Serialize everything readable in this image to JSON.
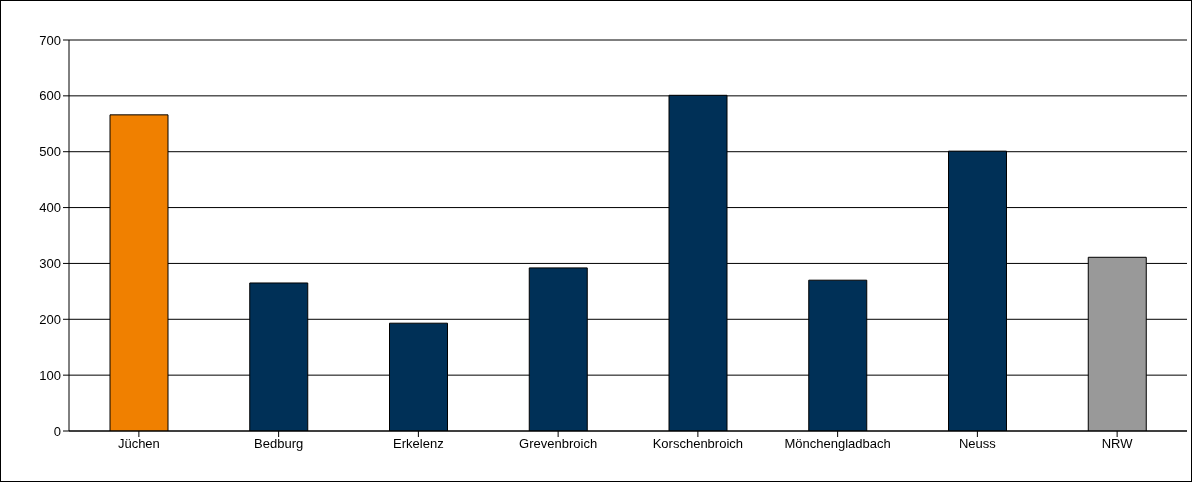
{
  "chart_data": {
    "type": "bar",
    "categories": [
      "Jüchen",
      "Bedburg",
      "Erkelenz",
      "Grevenbroich",
      "Korschenbroich",
      "Mönchengladbach",
      "Neuss",
      "NRW"
    ],
    "values": [
      566,
      265,
      193,
      292,
      601,
      270,
      501,
      311
    ],
    "colors": [
      "#f08000",
      "#003057",
      "#003057",
      "#003057",
      "#003057",
      "#003057",
      "#003057",
      "#999999"
    ],
    "ylim": [
      0,
      700
    ],
    "yticks": [
      0,
      100,
      200,
      300,
      400,
      500,
      600,
      700
    ],
    "grid": "y"
  }
}
